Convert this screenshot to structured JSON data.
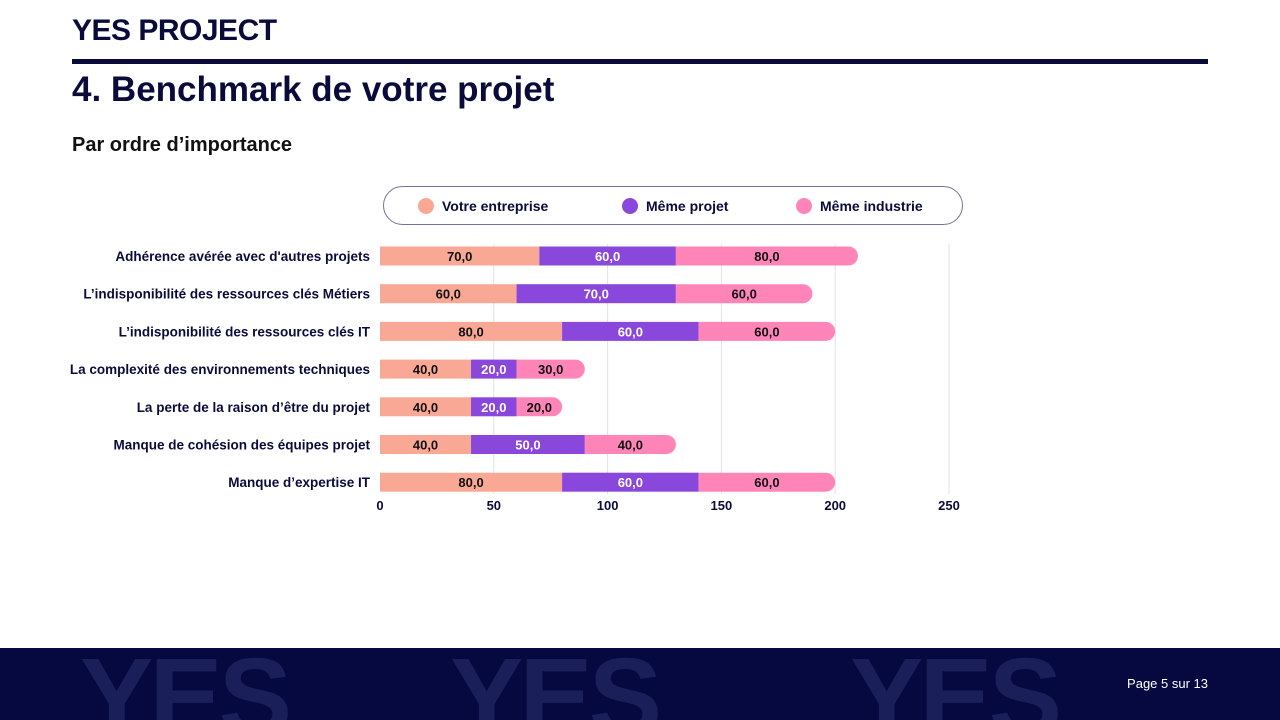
{
  "header": {
    "logo": "YES PROJECT",
    "title": "4. Benchmark de votre projet",
    "subtitle": "Par ordre d’importance"
  },
  "footer": {
    "watermark": "YES",
    "page": "Page 5 sur 13"
  },
  "chart_data": {
    "type": "bar",
    "orientation": "horizontal",
    "stacked": true,
    "categories": [
      "Adhérence avérée avec d'autres projets",
      "L’indisponibilité des ressources clés Métiers",
      "L’indisponibilité des ressources clés IT",
      "La complexité des environnements techniques",
      "La perte de la raison d’être du projet",
      "Manque de cohésion des équipes projet",
      "Manque d’expertise IT"
    ],
    "series": [
      {
        "name": "Votre entreprise",
        "color": "#f9a895",
        "label_color": "#111111",
        "values": [
          70,
          60,
          80,
          40,
          40,
          40,
          80
        ]
      },
      {
        "name": "Même projet",
        "color": "#8a47dc",
        "label_color": "#ffffff",
        "values": [
          60,
          70,
          60,
          20,
          20,
          50,
          60
        ]
      },
      {
        "name": "Même industrie",
        "color": "#ff85b8",
        "label_color": "#111111",
        "values": [
          80,
          60,
          60,
          30,
          20,
          40,
          60
        ]
      }
    ],
    "xlim": [
      0,
      250
    ],
    "xticks": [
      "0",
      "50",
      "100",
      "150",
      "200",
      "250"
    ],
    "grid": true,
    "legend": "top"
  }
}
